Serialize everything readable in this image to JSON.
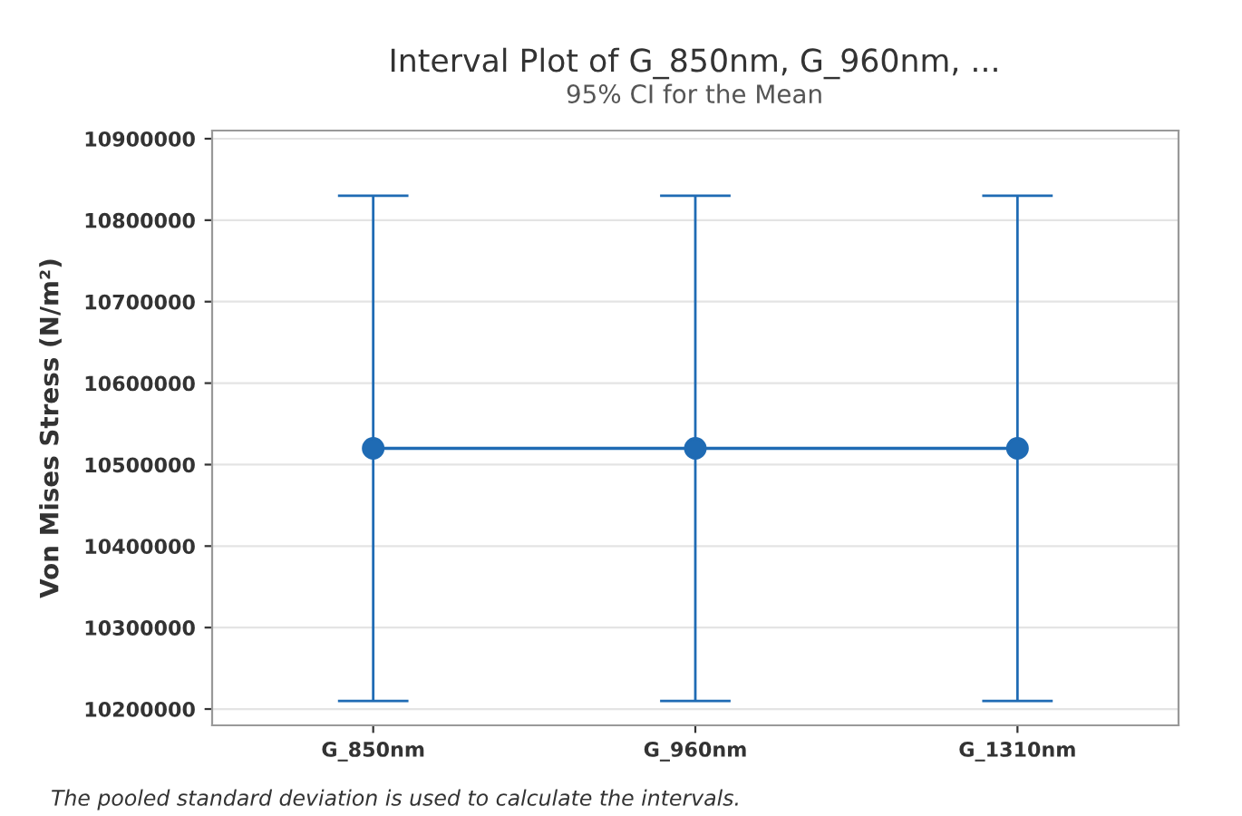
{
  "chart_data": {
    "type": "line",
    "title": "Interval Plot of G_850nm, G_960nm, ...",
    "subtitle": "95% CI for the Mean",
    "ylabel": "Von Mises Stress (N/m²)",
    "categories": [
      "G_850nm",
      "G_960nm",
      "G_1310nm"
    ],
    "series": [
      {
        "color": "#1f6bb4",
        "values": [
          10520000,
          10520000,
          10520000
        ],
        "errors": [
          [
            10210000,
            10830000
          ],
          [
            10210000,
            10830000
          ],
          [
            10210000,
            10830000
          ]
        ]
      }
    ],
    "ylim": [
      10180000,
      10910000
    ],
    "yticks": [
      10200000,
      10300000,
      10400000,
      10500000,
      10600000,
      10700000,
      10800000,
      10900000
    ],
    "grid": "y",
    "marker": "circle",
    "line_style": "solid",
    "legend": false,
    "annotations": [
      "The pooled standard deviation is used to calculate the intervals."
    ]
  }
}
